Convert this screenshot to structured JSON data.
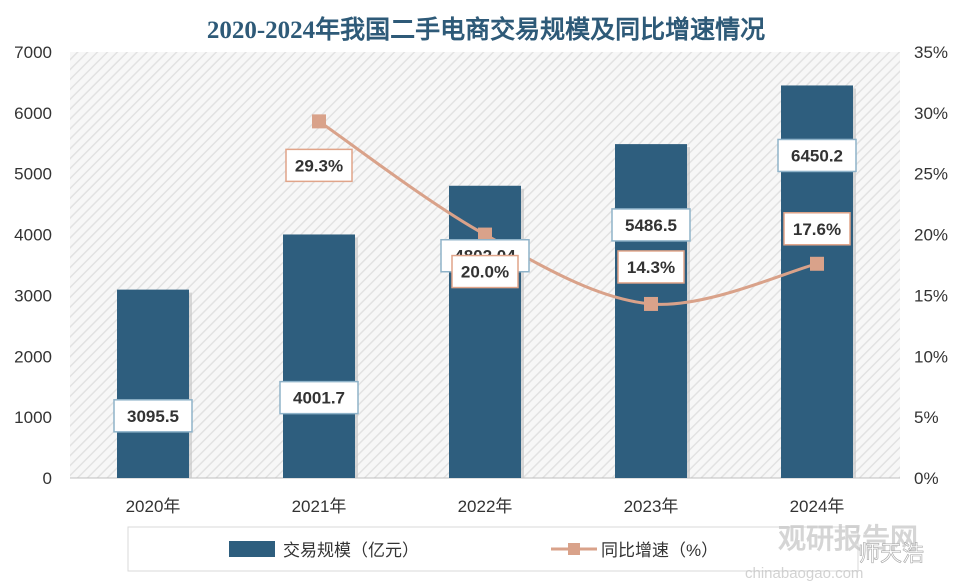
{
  "chart_data": {
    "type": "bar",
    "title": "2020-2024年我国二手电商交易规模及同比增速情况",
    "categories": [
      "2020年",
      "2021年",
      "2022年",
      "2023年",
      "2024年"
    ],
    "series": [
      {
        "name": "交易规模（亿元）",
        "type": "bar",
        "axis": "left",
        "color": "#2e5e7e",
        "values": [
          3095.5,
          4001.7,
          4802.04,
          5486.5,
          6450.2
        ],
        "labels": [
          "3095.5",
          "4001.7",
          "4802.04",
          "5486.5",
          "6450.2"
        ]
      },
      {
        "name": "同比增速（%）",
        "type": "line",
        "axis": "right",
        "color": "#d9a28a",
        "values": [
          null,
          29.3,
          20.0,
          14.3,
          17.6
        ],
        "labels": [
          "",
          "29.3%",
          "20.0%",
          "14.3%",
          "17.6%"
        ]
      }
    ],
    "y_left": {
      "min": 0,
      "max": 7000,
      "ticks": [
        "0",
        "1000",
        "2000",
        "3000",
        "4000",
        "5000",
        "6000",
        "7000"
      ]
    },
    "y_right": {
      "min": 0,
      "max": 35,
      "ticks": [
        "0%",
        "5%",
        "10%",
        "15%",
        "20%",
        "25%",
        "30%",
        "35%"
      ]
    },
    "grid": false,
    "legend_position": "bottom"
  },
  "watermark": {
    "brand": "观研报告网",
    "url": "chinabaogao.com",
    "tag": "师天浩"
  }
}
